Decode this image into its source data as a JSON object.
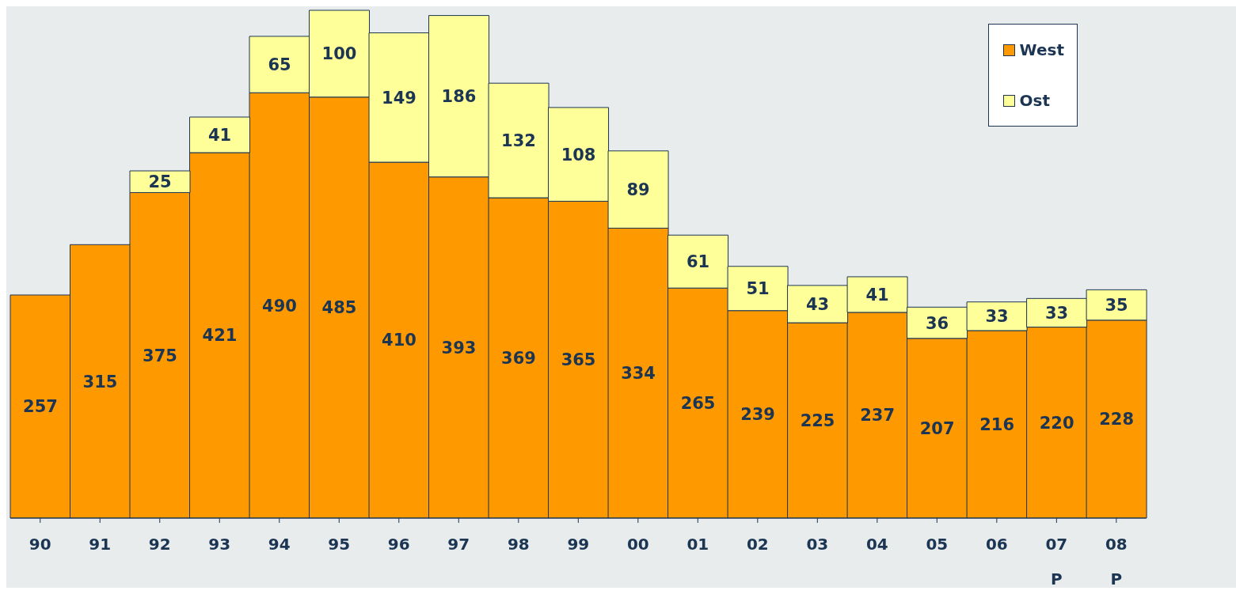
{
  "chart_data": {
    "type": "bar",
    "stacked": true,
    "data_labels": true,
    "legend": "top right",
    "grid": false,
    "categories": [
      "90",
      "91",
      "92",
      "93",
      "94",
      "95",
      "96",
      "97",
      "98",
      "99",
      "00",
      "01",
      "02",
      "03",
      "04",
      "05",
      "06",
      "07\nP",
      "08\nP"
    ],
    "series": [
      {
        "name": "West",
        "color": "#ff9900",
        "values": [
          257,
          315,
          375,
          421,
          490,
          485,
          410,
          393,
          369,
          365,
          334,
          265,
          239,
          225,
          237,
          207,
          216,
          220,
          228
        ]
      },
      {
        "name": "Ost",
        "color": "#ffff99",
        "values": [
          null,
          null,
          25,
          41,
          65,
          100,
          149,
          186,
          132,
          108,
          89,
          61,
          51,
          43,
          41,
          36,
          33,
          33,
          35
        ]
      }
    ]
  }
}
